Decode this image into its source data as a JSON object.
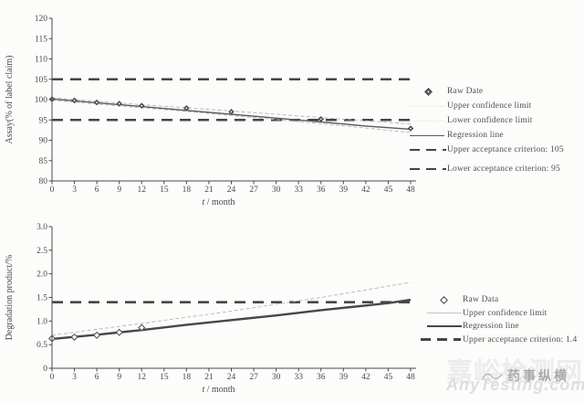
{
  "colors": {
    "ink": "#4a4a4a",
    "confidence_line": "#b4b4b4",
    "criterion_line": "#454545",
    "watermark_light": "#ececec",
    "watermark_gray": "#a8a8a8"
  },
  "watermark": {
    "site_name": "嘉峪检测网",
    "site_url": "AnyTesting.com",
    "brand": "药事纵横"
  },
  "chart_data": [
    {
      "type": "line",
      "title": "",
      "xlabel": "t / month",
      "ylabel": "Assay(% of label claim)",
      "xlim": [
        0,
        48
      ],
      "ylim": [
        80,
        120
      ],
      "grid": false,
      "legend_position": "right",
      "xticks": [
        0,
        3,
        6,
        9,
        12,
        15,
        18,
        21,
        24,
        27,
        30,
        33,
        36,
        39,
        42,
        45,
        48
      ],
      "yticks": [
        80,
        85,
        90,
        95,
        100,
        105,
        110,
        115,
        120
      ],
      "ytick_labels": [
        "80",
        "85",
        "90",
        "95",
        "100",
        "105",
        "110",
        "115",
        "120"
      ],
      "criteria": [
        {
          "label": "Upper acceptance criterion: 105",
          "value": 105
        },
        {
          "label": "Lower acceptance criterion: 95",
          "value": 95
        }
      ],
      "series": [
        {
          "name": "Upper confidence limit",
          "kind": "line",
          "style": "confidence",
          "x": [
            0,
            6,
            12,
            18,
            24,
            30,
            36,
            42,
            48
          ],
          "y": [
            100.45,
            99.6,
            98.75,
            98.0,
            97.2,
            96.4,
            95.6,
            94.8,
            94.0
          ]
        },
        {
          "name": "Lower confidence limit",
          "kind": "line",
          "style": "confidence",
          "x": [
            0,
            6,
            12,
            18,
            24,
            30,
            36,
            42,
            48
          ],
          "y": [
            99.85,
            98.9,
            98.0,
            97.1,
            96.1,
            95.1,
            94.1,
            93.0,
            91.9
          ]
        },
        {
          "name": "Regression line",
          "kind": "line",
          "style": "regression",
          "x": [
            0,
            12,
            24,
            36,
            42,
            48
          ],
          "y": [
            100.15,
            98.3,
            96.4,
            94.5,
            93.5,
            92.7
          ]
        },
        {
          "name": "Raw Date",
          "kind": "scatter",
          "marker": "filled-diamond",
          "x": [
            0,
            3,
            6,
            9,
            12,
            18,
            24,
            36,
            48
          ],
          "y": [
            100.1,
            99.8,
            99.3,
            99.0,
            98.5,
            97.9,
            97.0,
            95.2,
            92.9
          ]
        }
      ],
      "legend": [
        {
          "label": "Raw Date",
          "swatch": "diamond-filled"
        },
        {
          "label": "Upper confidence limit",
          "swatch": "faint"
        },
        {
          "label": "Lower confidence limit",
          "swatch": "faint"
        },
        {
          "label": "Regression line",
          "swatch": "solid"
        },
        {
          "label": "Upper acceptance criterion: 105",
          "swatch": "dash"
        },
        {
          "label": "Lower acceptance criterion: 95",
          "swatch": "dash"
        }
      ]
    },
    {
      "type": "line",
      "title": "",
      "xlabel": "t / month",
      "ylabel": "Degradation product/%",
      "xlim": [
        0,
        48
      ],
      "ylim": [
        0,
        3.0
      ],
      "grid": false,
      "legend_position": "right",
      "xticks": [
        0,
        3,
        6,
        9,
        12,
        15,
        18,
        21,
        24,
        27,
        30,
        33,
        36,
        39,
        42,
        45,
        48
      ],
      "yticks": [
        0,
        0.5,
        1.0,
        1.5,
        2.0,
        2.5,
        3.0
      ],
      "ytick_labels": [
        "0",
        "0.5",
        "1.0",
        "1.5",
        "2.0",
        "2.5",
        "3.0"
      ],
      "criteria": [
        {
          "label": "Upper acceptance criterion: 1.4",
          "value": 1.4
        }
      ],
      "series": [
        {
          "name": "Upper confidence limit",
          "kind": "line",
          "style": "confidence",
          "x": [
            0,
            12,
            24,
            36,
            48
          ],
          "y": [
            0.7,
            0.95,
            1.21,
            1.5,
            1.82
          ]
        },
        {
          "name": "Regression line",
          "kind": "line",
          "style": "regression-thick",
          "x": [
            0,
            6,
            12,
            18,
            24,
            30,
            36,
            42,
            45,
            48
          ],
          "y": [
            0.62,
            0.71,
            0.81,
            0.92,
            1.02,
            1.12,
            1.23,
            1.33,
            1.38,
            1.45
          ]
        },
        {
          "name": "Raw Data",
          "kind": "scatter",
          "marker": "open-diamond",
          "x": [
            0,
            3,
            6,
            9,
            12
          ],
          "y": [
            0.63,
            0.66,
            0.7,
            0.76,
            0.86
          ]
        }
      ],
      "legend": [
        {
          "label": "Raw Data",
          "swatch": "diamond-open"
        },
        {
          "label": "Upper confidence limit",
          "swatch": "light"
        },
        {
          "label": "Regression line",
          "swatch": "thick"
        },
        {
          "label": "Upper acceptance criterion: 1.4",
          "swatch": "dash"
        }
      ]
    }
  ]
}
